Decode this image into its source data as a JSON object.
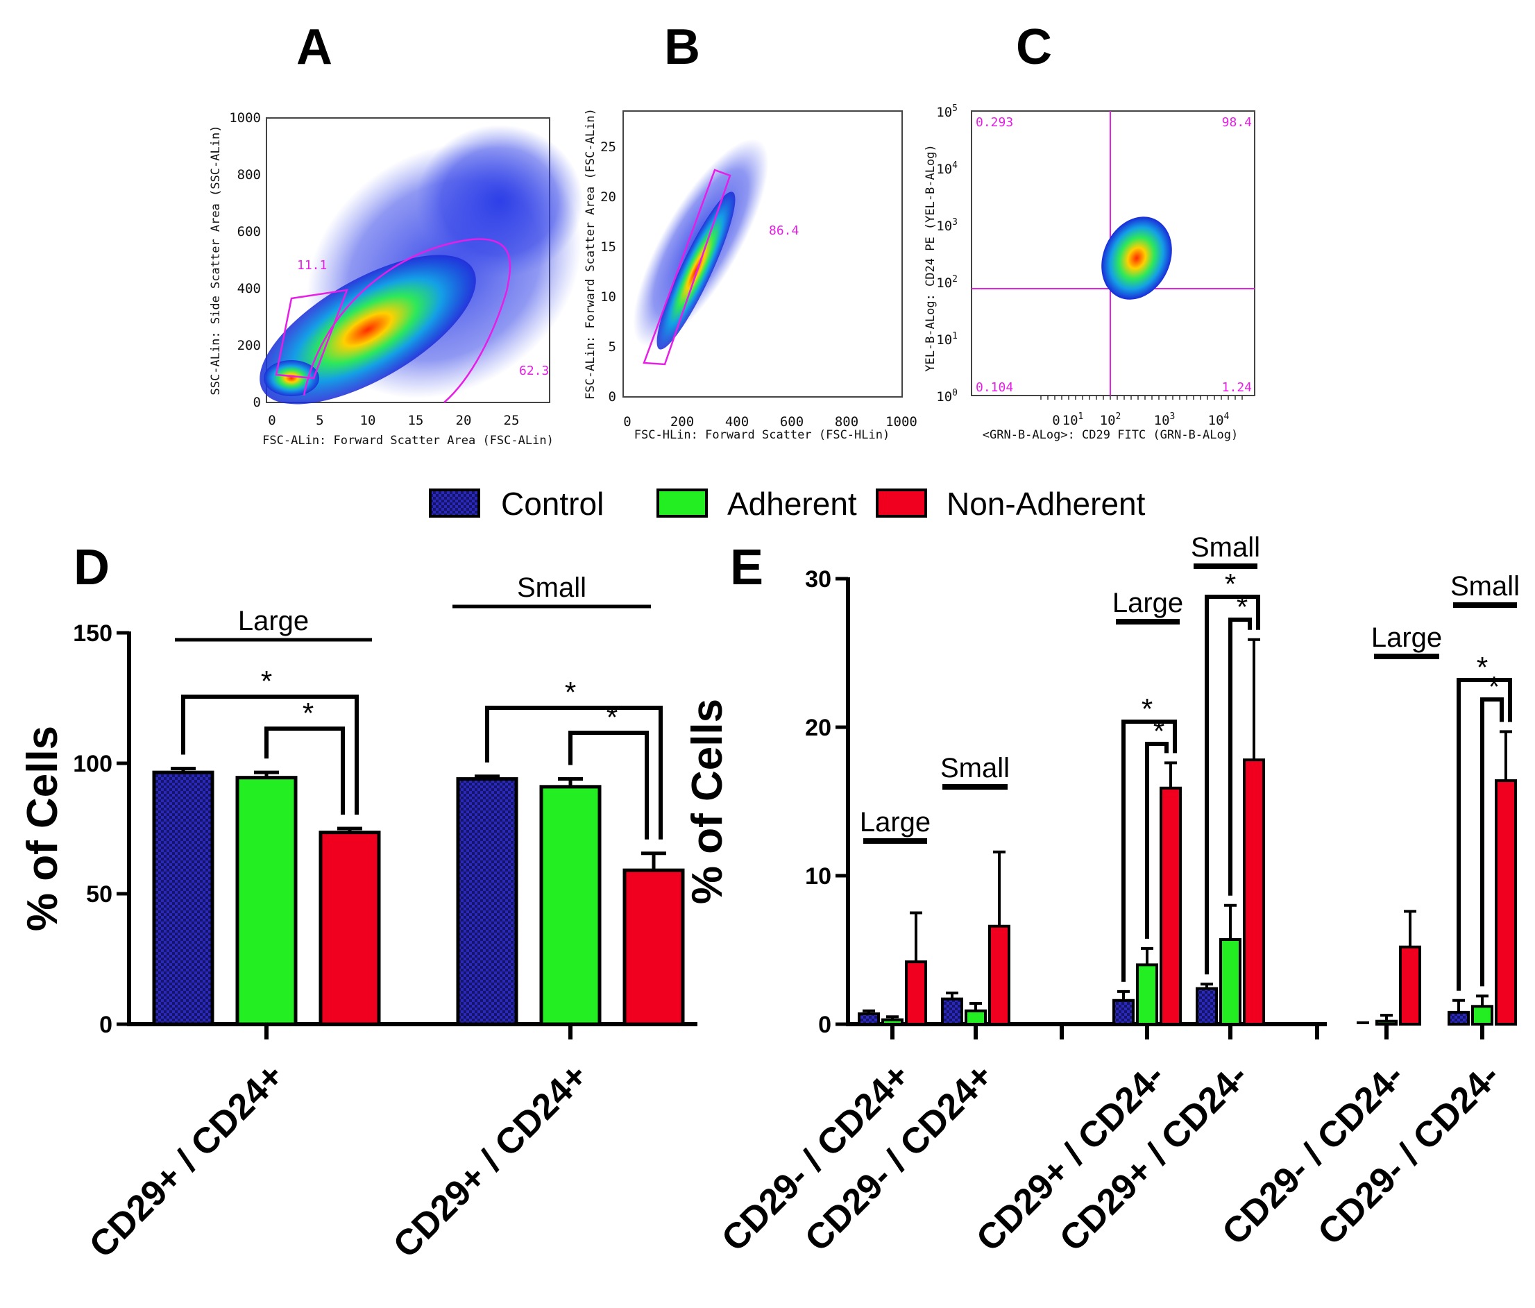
{
  "panels": {
    "a": "A",
    "b": "B",
    "c": "C",
    "d": "D",
    "e": "E"
  },
  "flow_a": {
    "xlabel": "FSC-ALin: Forward Scatter Area (FSC-ALin)",
    "ylabel": "SSC-ALin: Side Scatter Area (SSC-ALin)",
    "xticks": [
      "0",
      "5",
      "10",
      "15",
      "20",
      "25"
    ],
    "yticks": [
      "0",
      "200",
      "400",
      "600",
      "800",
      "1000"
    ],
    "gate1": "11.1",
    "gate2": "62.3"
  },
  "flow_b": {
    "xlabel": "FSC-HLin: Forward Scatter (FSC-HLin)",
    "ylabel": "FSC-ALin: Forward Scatter Area (FSC-ALin)",
    "xticks": [
      "0",
      "200",
      "400",
      "600",
      "800",
      "1000"
    ],
    "yticks": [
      "0",
      "5",
      "10",
      "15",
      "20",
      "25"
    ],
    "gate1": "86.4"
  },
  "flow_c": {
    "xlabel": "<GRN-B-ALog>: CD29 FITC (GRN-B-ALog)",
    "ylabel": "YEL-B-ALog: CD24 PE (YEL-B-ALog)",
    "xticks": [
      "0",
      "10",
      "10",
      "10",
      "10"
    ],
    "xticks_exp": [
      "",
      "1",
      "2",
      "3",
      "4"
    ],
    "yticks": [
      "10",
      "10",
      "10",
      "10",
      "10",
      "10"
    ],
    "yticks_exp": [
      "0",
      "1",
      "2",
      "3",
      "4",
      "5"
    ],
    "q_ul": "0.293",
    "q_ur": "98.4",
    "q_ll": "0.104",
    "q_lr": "1.24"
  },
  "legend": {
    "control": "Control",
    "adherent": "Adherent",
    "nonadherent": "Non-Adherent"
  },
  "colors": {
    "control": "#1c1c8c",
    "adherent": "#22ee22",
    "nonadherent": "#f0001e",
    "gate": "#e61ee6"
  },
  "significance": "*",
  "chart_data": [
    {
      "type": "bar",
      "panel": "D",
      "ylabel": "% of Cells",
      "ylim": [
        0,
        150
      ],
      "yticks": [
        "0",
        "50",
        "100",
        "150"
      ],
      "series_names": [
        "Control",
        "Adherent",
        "Non-Adherent"
      ],
      "groups": [
        {
          "label": "Large",
          "category": "CD29+ / CD24+",
          "values": [
            96.5,
            94.5,
            73.5
          ],
          "errors": [
            1.5,
            2.0,
            1.5
          ]
        },
        {
          "label": "Small",
          "category": "CD29+ / CD24+",
          "values": [
            94.0,
            91.0,
            59.0
          ],
          "errors": [
            1.0,
            3.0,
            6.5
          ]
        }
      ]
    },
    {
      "type": "bar",
      "panel": "E",
      "ylabel": "% of Cells",
      "ylim": [
        0,
        30
      ],
      "yticks": [
        "0",
        "10",
        "20",
        "30"
      ],
      "series_names": [
        "Control",
        "Adherent",
        "Non-Adherent"
      ],
      "groups": [
        {
          "label": "Large",
          "category": "CD29- / CD24+",
          "values": [
            0.7,
            0.3,
            4.2
          ],
          "errors": [
            0.2,
            0.2,
            3.3
          ]
        },
        {
          "label": "Small",
          "category": "CD29- / CD24+",
          "values": [
            1.7,
            0.9,
            6.6
          ],
          "errors": [
            0.4,
            0.5,
            5.0
          ]
        },
        {
          "label": "Large",
          "category": "CD29+ / CD24-",
          "values": [
            1.6,
            4.0,
            15.9
          ],
          "errors": [
            0.6,
            1.1,
            1.7
          ]
        },
        {
          "label": "Small",
          "category": "CD29+ / CD24-",
          "values": [
            2.4,
            5.7,
            17.8
          ],
          "errors": [
            0.3,
            2.3,
            8.1
          ]
        },
        {
          "label": "Large",
          "category": "CD29- / CD24-",
          "values": [
            0.0,
            0.2,
            5.2
          ],
          "errors": [
            0.1,
            0.4,
            2.4
          ]
        },
        {
          "label": "Small",
          "category": "CD29- / CD24-",
          "values": [
            0.8,
            1.2,
            16.4
          ],
          "errors": [
            0.8,
            0.7,
            3.3
          ]
        }
      ]
    }
  ]
}
